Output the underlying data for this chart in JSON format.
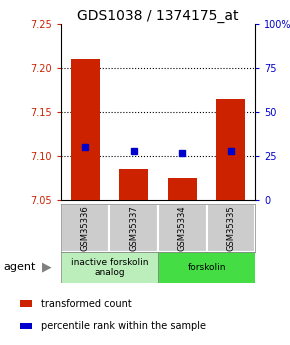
{
  "title": "GDS1038 / 1374175_at",
  "samples": [
    "GSM35336",
    "GSM35337",
    "GSM35334",
    "GSM35335"
  ],
  "bar_values": [
    7.21,
    7.085,
    7.075,
    7.165
  ],
  "percentile_values": [
    30,
    28,
    27,
    28
  ],
  "ylim_left": [
    7.05,
    7.25
  ],
  "ylim_right": [
    0,
    100
  ],
  "yticks_left": [
    7.05,
    7.1,
    7.15,
    7.2,
    7.25
  ],
  "yticks_right": [
    0,
    25,
    50,
    75,
    100
  ],
  "ytick_labels_right": [
    "0",
    "25",
    "50",
    "75",
    "100%"
  ],
  "bar_color": "#cc2200",
  "dot_color": "#0000cc",
  "bar_bottom": 7.05,
  "agent_groups": [
    {
      "label": "inactive forskolin\nanalog",
      "span": [
        0,
        2
      ],
      "color": "#bbeebb"
    },
    {
      "label": "forskolin",
      "span": [
        2,
        4
      ],
      "color": "#44dd44"
    }
  ],
  "legend_items": [
    {
      "color": "#cc2200",
      "label": "transformed count"
    },
    {
      "color": "#0000cc",
      "label": "percentile rank within the sample"
    }
  ],
  "gridline_color": "#000000",
  "gridline_values": [
    7.1,
    7.15,
    7.2
  ],
  "sample_box_color": "#cccccc",
  "title_fontsize": 10,
  "tick_fontsize": 7,
  "legend_fontsize": 7
}
